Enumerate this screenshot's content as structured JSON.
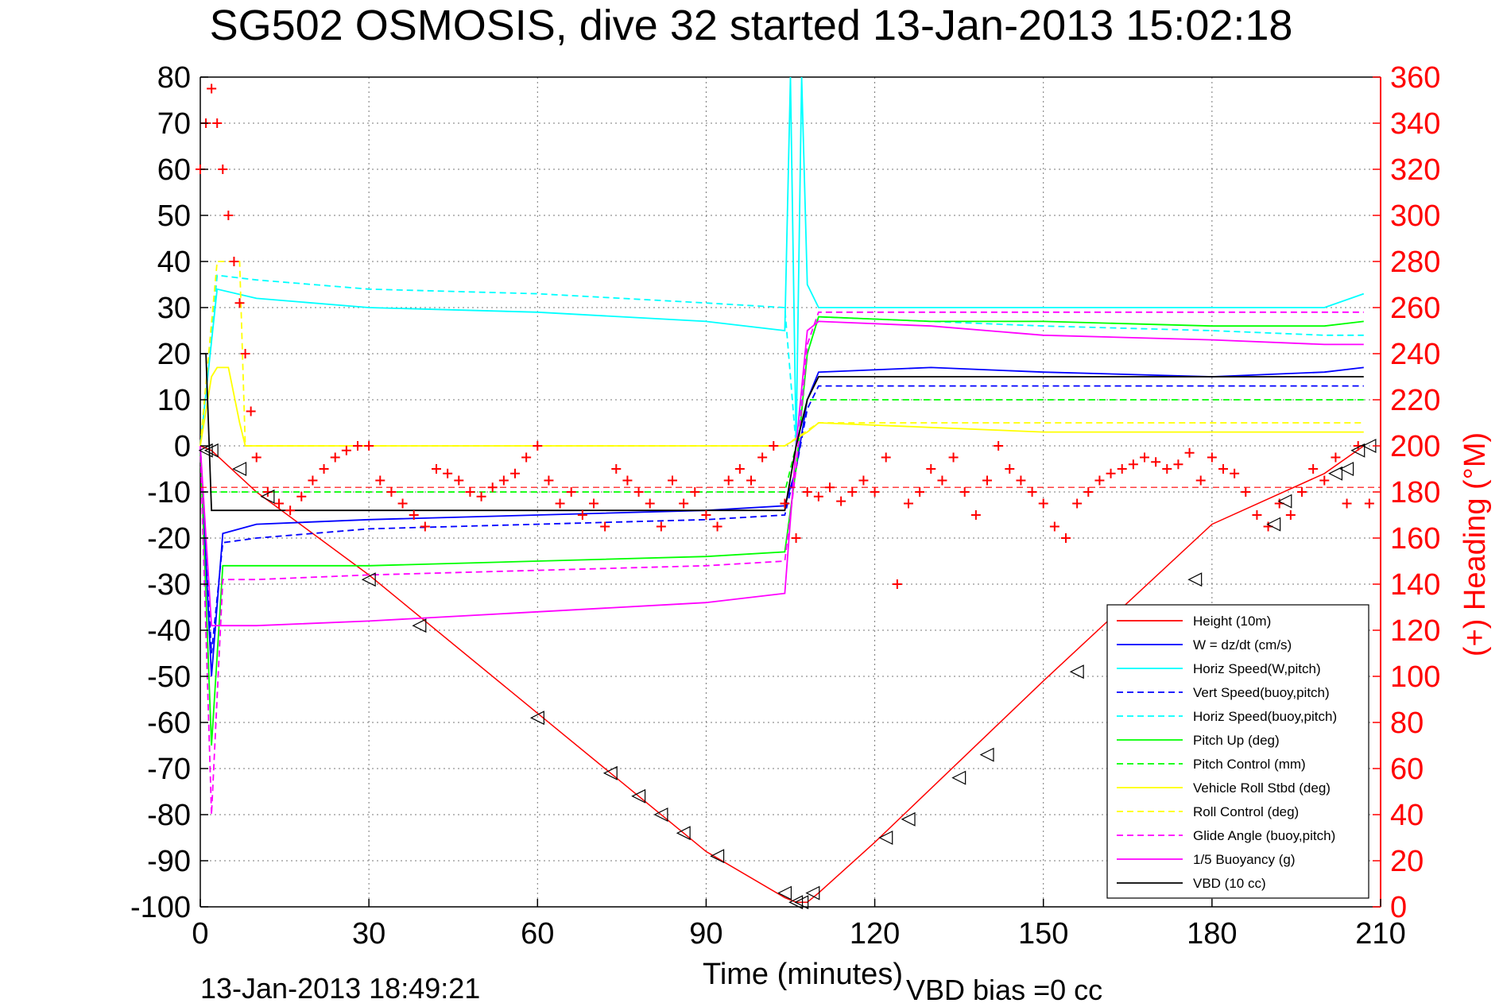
{
  "chart_data": {
    "type": "line",
    "title": "SG502 OSMOSIS, dive 32 started 13-Jan-2013 15:02:18",
    "xlabel": "Time (minutes)",
    "ylabel_right": "(+) Heading (°M)",
    "footer_date": "13-Jan-2013 18:49:21",
    "footer_vbd": "VBD bias =0 cc",
    "xlim": [
      0,
      210
    ],
    "ylim": [
      -100,
      80
    ],
    "ylim_right": [
      0,
      360
    ],
    "xticks": [
      0,
      30,
      60,
      90,
      120,
      150,
      180,
      210
    ],
    "yticks": [
      80,
      70,
      60,
      50,
      40,
      30,
      20,
      10,
      0,
      -10,
      -20,
      -30,
      -40,
      -50,
      -60,
      -70,
      -80,
      -90,
      -100
    ],
    "yticks_right": [
      360,
      340,
      320,
      300,
      280,
      260,
      240,
      220,
      200,
      180,
      160,
      140,
      120,
      100,
      80,
      60,
      40,
      20,
      0
    ],
    "grid": true,
    "legend_position": "bottom-right",
    "colors": {
      "height": "#ff0000",
      "w": "#0000ff",
      "horiz_w": "#00ffff",
      "vert_buoy": "#0000ff",
      "horiz_buoy": "#00ffff",
      "pitch_up": "#00ff00",
      "pitch_ctrl": "#00ff00",
      "roll": "#ffff00",
      "roll_ctrl": "#ffff00",
      "glide": "#ff00ff",
      "buoyancy": "#ff00ff",
      "vbd": "#000000",
      "heading": "#ff0000"
    },
    "legend": [
      {
        "key": "height",
        "label": "Height (10m)",
        "dash": false
      },
      {
        "key": "w",
        "label": "W = dz/dt (cm/s)",
        "dash": false
      },
      {
        "key": "horiz_w",
        "label": "Horiz Speed(W,pitch)",
        "dash": false
      },
      {
        "key": "vert_buoy",
        "label": "Vert Speed(buoy,pitch)",
        "dash": true
      },
      {
        "key": "horiz_buoy",
        "label": "Horiz Speed(buoy,pitch)",
        "dash": true
      },
      {
        "key": "pitch_up",
        "label": "Pitch Up (deg)",
        "dash": false
      },
      {
        "key": "pitch_ctrl",
        "label": "Pitch Control (mm)",
        "dash": true
      },
      {
        "key": "roll",
        "label": "Vehicle Roll Stbd (deg)",
        "dash": false
      },
      {
        "key": "roll_ctrl",
        "label": "Roll Control (deg)",
        "dash": true
      },
      {
        "key": "glide",
        "label": "Glide Angle (buoy,pitch)",
        "dash": true
      },
      {
        "key": "buoyancy",
        "label": "1/5 Buoyancy (g)",
        "dash": false
      },
      {
        "key": "vbd",
        "label": "VBD (10 cc)",
        "dash": false
      }
    ],
    "series": [
      {
        "key": "height",
        "x": [
          0,
          2,
          10,
          30,
          60,
          90,
          104,
          106,
          108,
          110,
          120,
          150,
          180,
          200,
          207
        ],
        "y": [
          0,
          -1,
          -10,
          -28,
          -58,
          -88,
          -98,
          -99,
          -99,
          -97,
          -86,
          -51,
          -17,
          -6,
          0
        ]
      },
      {
        "key": "w",
        "x": [
          0,
          2,
          4,
          10,
          30,
          60,
          90,
          104,
          106,
          108,
          110,
          130,
          150,
          180,
          200,
          207
        ],
        "y": [
          0,
          -50,
          -19,
          -17,
          -16,
          -15,
          -14,
          -13,
          -5,
          10,
          16,
          17,
          16,
          15,
          16,
          17
        ]
      },
      {
        "key": "horiz_w",
        "x": [
          0,
          3,
          10,
          30,
          60,
          90,
          104,
          105,
          106,
          107,
          108,
          110,
          130,
          150,
          180,
          200,
          207
        ],
        "y": [
          0,
          34,
          32,
          30,
          29,
          27,
          25,
          80,
          0,
          80,
          35,
          30,
          30,
          30,
          30,
          30,
          33
        ]
      },
      {
        "key": "vert_buoy",
        "x": [
          0,
          2,
          4,
          10,
          30,
          60,
          90,
          104,
          106,
          108,
          110,
          130,
          150,
          180,
          200,
          207
        ],
        "y": [
          0,
          -45,
          -21,
          -20,
          -18,
          -17,
          -16,
          -15,
          -5,
          8,
          13,
          13,
          13,
          13,
          13,
          13
        ]
      },
      {
        "key": "horiz_buoy",
        "x": [
          0,
          3,
          10,
          30,
          60,
          90,
          104,
          106,
          108,
          110,
          130,
          150,
          180,
          200,
          207
        ],
        "y": [
          0,
          37,
          36,
          34,
          33,
          31,
          30,
          0,
          20,
          28,
          27,
          26,
          25,
          24,
          24
        ]
      },
      {
        "key": "pitch_up",
        "x": [
          0,
          2,
          4,
          10,
          30,
          60,
          90,
          104,
          106,
          108,
          110,
          130,
          150,
          180,
          200,
          207
        ],
        "y": [
          0,
          -65,
          -26,
          -26,
          -26,
          -25,
          -24,
          -23,
          -5,
          20,
          28,
          27,
          27,
          26,
          26,
          27
        ]
      },
      {
        "key": "pitch_ctrl",
        "x": [
          0,
          2,
          4,
          10,
          60,
          104,
          106,
          108,
          110,
          150,
          207
        ],
        "y": [
          -10,
          -10,
          -10,
          -10,
          -10,
          -10,
          0,
          10,
          10,
          10,
          10
        ]
      },
      {
        "key": "roll",
        "x": [
          0,
          2,
          3,
          5,
          7,
          8,
          9,
          10,
          30,
          60,
          90,
          104,
          108,
          110,
          130,
          150,
          180,
          200,
          207
        ],
        "y": [
          0,
          15,
          17,
          17,
          5,
          0,
          0,
          0,
          0,
          0,
          0,
          0,
          3,
          5,
          4,
          3,
          3,
          3,
          3
        ]
      },
      {
        "key": "roll_ctrl",
        "x": [
          0,
          3,
          7,
          8,
          10,
          30,
          60,
          90,
          104,
          110,
          207
        ],
        "y": [
          0,
          40,
          40,
          0,
          0,
          0,
          0,
          0,
          0,
          5,
          5
        ]
      },
      {
        "key": "glide",
        "x": [
          0,
          2,
          4,
          10,
          30,
          60,
          90,
          104,
          106,
          108,
          110,
          130,
          150,
          180,
          200,
          207
        ],
        "y": [
          0,
          -80,
          -29,
          -29,
          -28,
          -27,
          -26,
          -25,
          -5,
          22,
          29,
          29,
          29,
          29,
          29,
          29
        ]
      },
      {
        "key": "buoyancy",
        "x": [
          0,
          2,
          3,
          10,
          30,
          60,
          90,
          104,
          106,
          108,
          110,
          130,
          150,
          180,
          200,
          207
        ],
        "y": [
          0,
          -39,
          -39,
          -39,
          -38,
          -36,
          -34,
          -32,
          0,
          25,
          27,
          26,
          24,
          23,
          22,
          22
        ]
      },
      {
        "key": "vbd",
        "x": [
          0,
          1,
          2,
          30,
          60,
          90,
          104,
          106,
          108,
          110,
          207
        ],
        "y": [
          20,
          20,
          -14,
          -14,
          -14,
          -14,
          -14,
          0,
          10,
          15,
          15
        ]
      }
    ],
    "heading": {
      "x": [
        0,
        1,
        2,
        3,
        4,
        5,
        6,
        7,
        8,
        9,
        10,
        12,
        14,
        16,
        18,
        20,
        22,
        24,
        26,
        28,
        30,
        32,
        34,
        36,
        38,
        40,
        42,
        44,
        46,
        48,
        50,
        52,
        54,
        56,
        58,
        60,
        62,
        64,
        66,
        68,
        70,
        72,
        74,
        76,
        78,
        80,
        82,
        84,
        86,
        88,
        90,
        92,
        94,
        96,
        98,
        100,
        102,
        104,
        106,
        108,
        110,
        112,
        114,
        116,
        118,
        120,
        122,
        124,
        126,
        128,
        130,
        132,
        134,
        136,
        138,
        140,
        142,
        144,
        146,
        148,
        150,
        152,
        154,
        156,
        158,
        160,
        162,
        164,
        166,
        168,
        170,
        172,
        174,
        176,
        178,
        180,
        182,
        184,
        186,
        188,
        190,
        192,
        194,
        196,
        198,
        200,
        202,
        204,
        206,
        208
      ],
      "y": [
        320,
        340,
        355,
        340,
        320,
        300,
        280,
        262,
        240,
        215,
        195,
        180,
        175,
        172,
        178,
        185,
        190,
        195,
        198,
        200,
        200,
        185,
        180,
        175,
        170,
        165,
        190,
        188,
        185,
        180,
        178,
        182,
        185,
        188,
        195,
        200,
        185,
        175,
        180,
        170,
        175,
        165,
        190,
        185,
        180,
        175,
        165,
        185,
        175,
        180,
        170,
        165,
        185,
        190,
        185,
        195,
        200,
        175,
        160,
        180,
        178,
        182,
        176,
        180,
        185,
        180,
        195,
        140,
        175,
        180,
        190,
        185,
        195,
        180,
        170,
        185,
        200,
        190,
        185,
        180,
        175,
        165,
        160,
        175,
        180,
        185,
        188,
        190,
        192,
        195,
        193,
        190,
        192,
        197,
        185,
        195,
        190,
        188,
        180,
        170,
        165,
        175,
        170,
        180,
        190,
        185,
        195,
        175,
        200,
        175
      ]
    },
    "markers": {
      "x": [
        1,
        2,
        7,
        12,
        30,
        39,
        60,
        73,
        78,
        82,
        86,
        92,
        104,
        106,
        107,
        109,
        122,
        126,
        135,
        140,
        156,
        177,
        191,
        193,
        202,
        204,
        206,
        208
      ],
      "y": [
        -1,
        -1,
        -5,
        -11,
        -29,
        -39,
        -59,
        -71,
        -76,
        -80,
        -84,
        -89,
        -97,
        -99,
        -99,
        -97,
        -85,
        -81,
        -72,
        -67,
        -49,
        -29,
        -17,
        -12,
        -6,
        -5,
        -1,
        0
      ]
    }
  }
}
